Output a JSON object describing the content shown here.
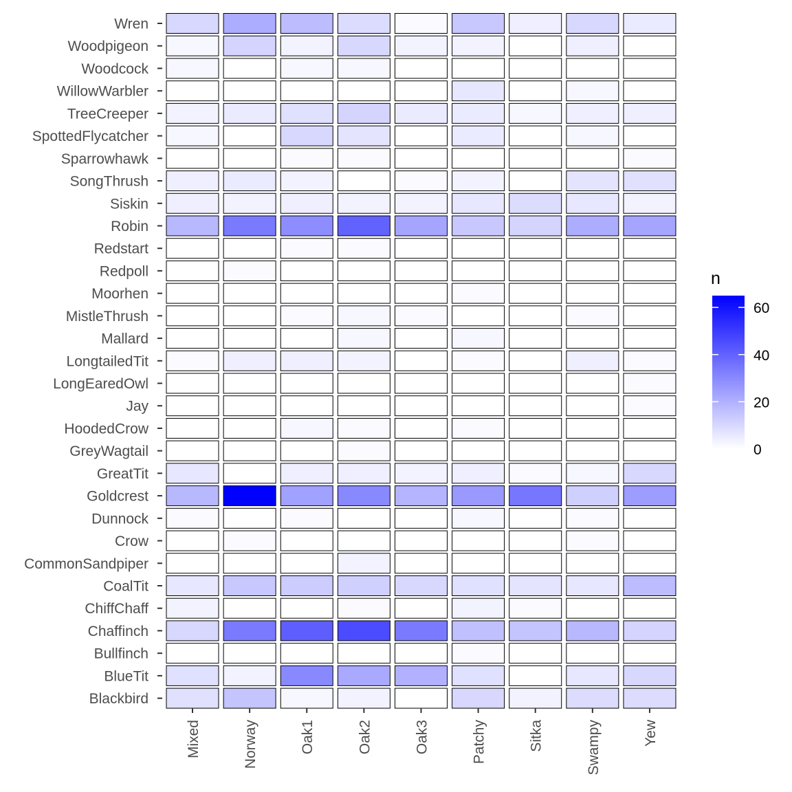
{
  "chart_data": {
    "type": "heatmap",
    "title": "",
    "xlabel": "",
    "ylabel": "",
    "x_categories": [
      "Mixed",
      "Norway",
      "Oak1",
      "Oak2",
      "Oak3",
      "Patchy",
      "Sitka",
      "Swampy",
      "Yew"
    ],
    "y_categories": [
      "Wren",
      "Woodpigeon",
      "Woodcock",
      "WillowWarbler",
      "TreeCreeper",
      "SpottedFlycatcher",
      "Sparrowhawk",
      "SongThrush",
      "Siskin",
      "Robin",
      "Redstart",
      "Redpoll",
      "Moorhen",
      "MistleThrush",
      "Mallard",
      "LongtailedTit",
      "LongEaredOwl",
      "Jay",
      "HoodedCrow",
      "GreyWagtail",
      "GreatTit",
      "Goldcrest",
      "Dunnock",
      "Crow",
      "CommonSandpiper",
      "CoalTit",
      "ChiffChaff",
      "Chaffinch",
      "Bullfinch",
      "BlueTit",
      "Blackbird"
    ],
    "values": [
      [
        10,
        21,
        17,
        9,
        1,
        14,
        4,
        10,
        5
      ],
      [
        2,
        11,
        3,
        10,
        3,
        3,
        0,
        4,
        0
      ],
      [
        2,
        0,
        2,
        2,
        0,
        0,
        0,
        0,
        0
      ],
      [
        0,
        0,
        0,
        0,
        0,
        6,
        0,
        2,
        0
      ],
      [
        3,
        5,
        8,
        11,
        5,
        5,
        2,
        4,
        4
      ],
      [
        2,
        0,
        10,
        7,
        0,
        5,
        0,
        2,
        0
      ],
      [
        0,
        0,
        1,
        1,
        0,
        0,
        0,
        0,
        1
      ],
      [
        4,
        5,
        3,
        0,
        1,
        3,
        0,
        7,
        8
      ],
      [
        4,
        3,
        4,
        3,
        3,
        6,
        9,
        6,
        3
      ],
      [
        18,
        34,
        29,
        40,
        23,
        14,
        11,
        21,
        23
      ],
      [
        0,
        0,
        1,
        1,
        0,
        0,
        0,
        0,
        0
      ],
      [
        0,
        1,
        0,
        0,
        0,
        0,
        0,
        0,
        0
      ],
      [
        0,
        0,
        0,
        0,
        0,
        1,
        0,
        0,
        0
      ],
      [
        0,
        0,
        1,
        2,
        1,
        0,
        0,
        1,
        0
      ],
      [
        0,
        0,
        0,
        2,
        0,
        2,
        0,
        0,
        0
      ],
      [
        1,
        4,
        4,
        3,
        0,
        1,
        0,
        4,
        1
      ],
      [
        0,
        0,
        0,
        0,
        0,
        0,
        0,
        0,
        1
      ],
      [
        0,
        0,
        0,
        0,
        0,
        0,
        0,
        0,
        1
      ],
      [
        0,
        0,
        2,
        1,
        0,
        1,
        0,
        0,
        0
      ],
      [
        0,
        0,
        0,
        1,
        0,
        0,
        0,
        0,
        0
      ],
      [
        6,
        0,
        4,
        4,
        3,
        4,
        1,
        2,
        10
      ],
      [
        18,
        65,
        24,
        30,
        19,
        26,
        35,
        12,
        25
      ],
      [
        1,
        0,
        1,
        0,
        0,
        2,
        0,
        1,
        0
      ],
      [
        0,
        1,
        0,
        0,
        0,
        0,
        0,
        1,
        0
      ],
      [
        0,
        0,
        0,
        3,
        0,
        0,
        0,
        0,
        0
      ],
      [
        6,
        14,
        13,
        12,
        10,
        8,
        7,
        6,
        17
      ],
      [
        3,
        0,
        0,
        1,
        0,
        3,
        1,
        0,
        0
      ],
      [
        10,
        34,
        41,
        46,
        34,
        16,
        15,
        18,
        11
      ],
      [
        0,
        0,
        0,
        0,
        0,
        1,
        0,
        0,
        0
      ],
      [
        8,
        3,
        30,
        22,
        20,
        8,
        0,
        6,
        10
      ],
      [
        8,
        15,
        2,
        3,
        0,
        10,
        3,
        9,
        9
      ]
    ],
    "fill_low_color": "#ffffff",
    "fill_high_color": "#0000ff",
    "legend": {
      "title": "n",
      "position": "right",
      "range": [
        0,
        65
      ],
      "ticks": [
        0,
        20,
        40,
        60
      ],
      "tick_labels": [
        "0",
        "20",
        "40",
        "60"
      ]
    },
    "grid": false
  }
}
